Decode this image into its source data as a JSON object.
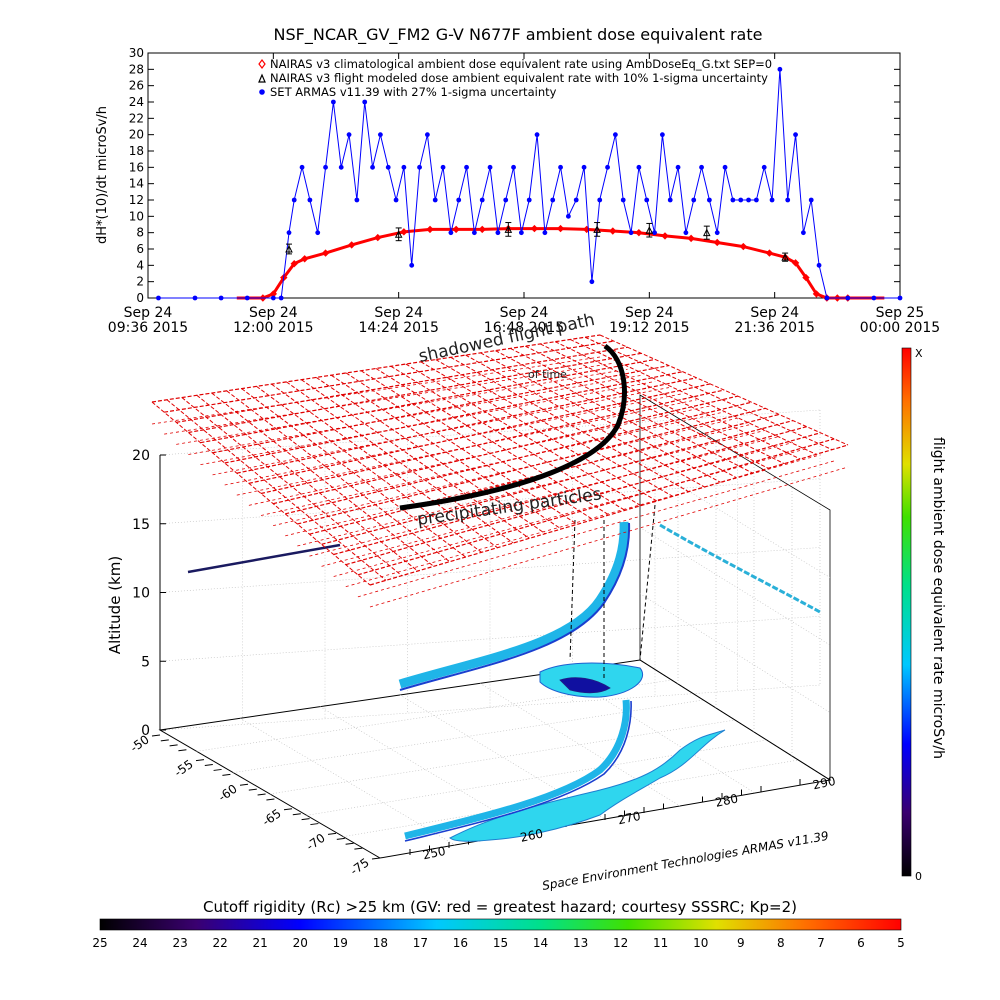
{
  "chart_data": [
    {
      "type": "line",
      "title": "NSF_NCAR_GV_FM2 G-V    N677F  ambient dose equivalent rate",
      "ylabel": "dH*(10)/dt microSv/h",
      "ylim": [
        0,
        30
      ],
      "y_ticks": [
        "0",
        "2",
        "4",
        "6",
        "8",
        "10",
        "12",
        "14",
        "16",
        "18",
        "20",
        "22",
        "24",
        "26",
        "28",
        "30"
      ],
      "x_ticks": [
        {
          "day": "Sep 24",
          "time": "09:36 2015"
        },
        {
          "day": "Sep 24",
          "time": "12:00 2015"
        },
        {
          "day": "Sep 24",
          "time": "14:24 2015"
        },
        {
          "day": "Sep 24",
          "time": "16:48 2015"
        },
        {
          "day": "Sep 24",
          "time": "19:12 2015"
        },
        {
          "day": "Sep 24",
          "time": "21:36 2015"
        },
        {
          "day": "Sep 25",
          "time": "00:00 2015"
        }
      ],
      "x_hours": [
        9.6,
        12.0,
        14.4,
        16.8,
        19.2,
        21.6,
        24.0
      ],
      "xlim_hours": [
        9.6,
        24.0
      ],
      "legend": [
        {
          "label": "NAIRAS v3 climatological ambient dose equivalent rate using AmbDoseEq_G.txt SEP=0",
          "color": "#ff0000",
          "marker": "diamond"
        },
        {
          "label": "NAIRAS v3 flight modeled dose ambient equivalent rate with 10% 1-sigma uncertainty",
          "color": "#000000",
          "marker": "triangle"
        },
        {
          "label": "SET ARMAS v11.39 with 27% 1-sigma uncertainty",
          "color": "#0000ff",
          "marker": "circle"
        }
      ],
      "series": [
        {
          "name": "NAIRAS v3 climatological ambient dose equivalent rate using AmbDoseEq_G.txt SEP=0",
          "color": "#ff0000",
          "x_hours": [
            11.8,
            12.0,
            12.2,
            12.4,
            12.6,
            13.0,
            13.5,
            14.0,
            14.5,
            15.0,
            15.5,
            16.0,
            16.5,
            17.0,
            17.5,
            18.0,
            18.5,
            19.0,
            19.5,
            20.0,
            20.5,
            21.0,
            21.5,
            21.8,
            22.0,
            22.2,
            22.4,
            22.6,
            22.8,
            23.0
          ],
          "values": [
            0,
            0.5,
            2.5,
            4.2,
            4.8,
            5.5,
            6.5,
            7.4,
            8.1,
            8.4,
            8.4,
            8.4,
            8.5,
            8.5,
            8.5,
            8.4,
            8.2,
            8.0,
            7.6,
            7.3,
            6.8,
            6.3,
            5.5,
            5.0,
            4.3,
            2.5,
            0.5,
            0,
            0,
            0
          ]
        },
        {
          "name": "NAIRAS v3 flight modeled dose ambient equivalent rate with 10% 1-sigma uncertainty",
          "color": "#000000",
          "x_hours": [
            12.3,
            14.4,
            16.5,
            18.2,
            19.2,
            20.3,
            21.8
          ],
          "values": [
            6.0,
            7.8,
            8.4,
            8.4,
            8.3,
            8.0,
            5.0
          ]
        },
        {
          "name": "SET ARMAS v11.39 with 27% 1-sigma uncertainty",
          "color": "#0000ff",
          "x_hours": [
            9.8,
            10.5,
            11.0,
            11.5,
            12.0,
            12.15,
            12.3,
            12.4,
            12.55,
            12.7,
            12.85,
            13.0,
            13.15,
            13.3,
            13.45,
            13.6,
            13.75,
            13.9,
            14.05,
            14.2,
            14.35,
            14.5,
            14.65,
            14.8,
            14.95,
            15.1,
            15.25,
            15.4,
            15.55,
            15.7,
            15.85,
            16.0,
            16.15,
            16.3,
            16.45,
            16.6,
            16.75,
            16.9,
            17.05,
            17.2,
            17.35,
            17.5,
            17.65,
            17.8,
            17.95,
            18.1,
            18.25,
            18.4,
            18.55,
            18.7,
            18.85,
            19.0,
            19.15,
            19.3,
            19.45,
            19.6,
            19.75,
            19.9,
            20.05,
            20.2,
            20.35,
            20.5,
            20.65,
            20.8,
            20.95,
            21.1,
            21.25,
            21.4,
            21.55,
            21.7,
            21.85,
            22.0,
            22.15,
            22.3,
            22.45,
            22.6,
            23.0,
            23.5,
            24.0
          ],
          "values": [
            0,
            0,
            0,
            0,
            0,
            0,
            8,
            12,
            16,
            12,
            8,
            16,
            24,
            16,
            20,
            12,
            24,
            16,
            20,
            16,
            12,
            16,
            4,
            16,
            20,
            12,
            16,
            8,
            12,
            16,
            8,
            12,
            16,
            8,
            12,
            16,
            8,
            12,
            20,
            8,
            12,
            16,
            10,
            12,
            16,
            2,
            12,
            16,
            20,
            12,
            8,
            16,
            12,
            8,
            20,
            12,
            16,
            8,
            12,
            16,
            12,
            8,
            16,
            12,
            12,
            12,
            12,
            16,
            12,
            28,
            12,
            20,
            8,
            12,
            4,
            0,
            0,
            0,
            0
          ]
        }
      ]
    },
    {
      "type": "scatter",
      "title": "",
      "zlabel": "Altitude (km)",
      "z_ticks": [
        "0",
        "5",
        "10",
        "15",
        "20"
      ],
      "zlim": [
        0,
        20
      ],
      "lat_ticks": [
        "-50",
        "-55",
        "-60",
        "-65",
        "-70",
        "-75"
      ],
      "lon_ticks": [
        "250",
        "260",
        "270",
        "280",
        "290"
      ],
      "annotations": [
        "shadowed flight path",
        "of time",
        "precipitating particles"
      ],
      "credit": "Space Environment Technologies ARMAS v11.39",
      "dose_colorbar": {
        "label": "flight ambient dose equivalent rate microSv/h",
        "max_label": "X",
        "min_label": "0"
      },
      "rigidity_colorbar": {
        "title": "Cutoff rigidity (Rc) >25 km (GV: red = greatest hazard; courtesy SSSRC; Kp=2)",
        "ticks": [
          "25",
          "24",
          "23",
          "22",
          "21",
          "20",
          "19",
          "18",
          "17",
          "16",
          "15",
          "14",
          "13",
          "12",
          "11",
          "10",
          "9",
          "8",
          "7",
          "6",
          "5"
        ]
      }
    }
  ]
}
